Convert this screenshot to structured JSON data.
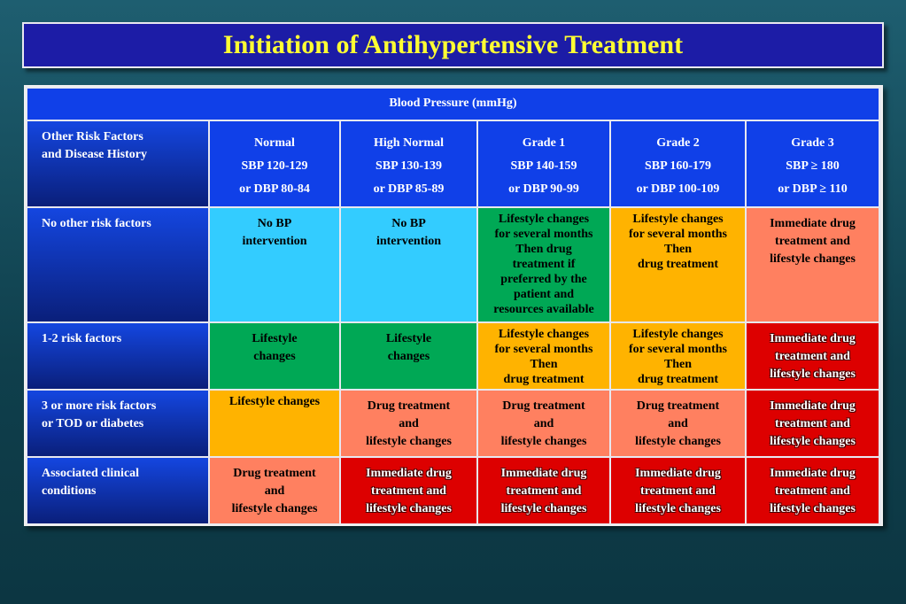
{
  "title": "Initiation of Antihypertensive Treatment",
  "table": {
    "header": "Blood Pressure (mmHg)",
    "corner": [
      "Other Risk Factors",
      "and Disease History"
    ],
    "columns": [
      [
        "Normal",
        "SBP 120-129",
        "or DBP 80-84"
      ],
      [
        "High Normal",
        "SBP 130-139",
        "or DBP 85-89"
      ],
      [
        "Grade 1",
        "SBP 140-159",
        "or DBP 90-99"
      ],
      [
        "Grade 2",
        "SBP 160-179",
        "or DBP 100-109"
      ],
      [
        "Grade 3",
        "SBP ≥ 180",
        "or DBP ≥ 110"
      ]
    ],
    "rows": [
      {
        "label": [
          "No other risk factors"
        ],
        "cells": [
          [
            "No BP",
            "intervention"
          ],
          [
            "No BP",
            "intervention"
          ],
          [
            "Lifestyle changes",
            "for several months",
            "Then drug",
            "treatment if",
            "preferred by the",
            "patient and",
            "resources available"
          ],
          [
            "Lifestyle changes",
            "for several months",
            "Then",
            "drug treatment"
          ],
          [
            "Immediate drug",
            "treatment and",
            "lifestyle changes"
          ]
        ]
      },
      {
        "label": [
          "1-2 risk factors"
        ],
        "cells": [
          [
            "Lifestyle",
            "changes"
          ],
          [
            "Lifestyle",
            "changes"
          ],
          [
            "Lifestyle changes",
            "for several months",
            "Then",
            "drug treatment"
          ],
          [
            "Lifestyle changes",
            "for several months",
            "Then",
            "drug treatment"
          ],
          [
            "Immediate drug",
            "treatment and",
            "lifestyle changes"
          ]
        ]
      },
      {
        "label": [
          "3 or more risk factors",
          "or TOD or diabetes"
        ],
        "cells": [
          [
            "Lifestyle changes"
          ],
          [
            "Drug treatment",
            "and",
            "lifestyle changes"
          ],
          [
            "Drug treatment",
            "and",
            "lifestyle changes"
          ],
          [
            "Drug treatment",
            "and",
            "lifestyle changes"
          ],
          [
            "Immediate drug",
            "treatment and",
            "lifestyle changes"
          ]
        ]
      },
      {
        "label": [
          "Associated clinical",
          "conditions"
        ],
        "cells": [
          [
            "Drug treatment",
            "and",
            "lifestyle changes"
          ],
          [
            "Immediate drug",
            "treatment and",
            "lifestyle changes"
          ],
          [
            "Immediate drug",
            "treatment and",
            "lifestyle changes"
          ],
          [
            "Immediate drug",
            "treatment and",
            "lifestyle changes"
          ],
          [
            "Immediate drug",
            "treatment and",
            "lifestyle changes"
          ]
        ]
      }
    ]
  }
}
